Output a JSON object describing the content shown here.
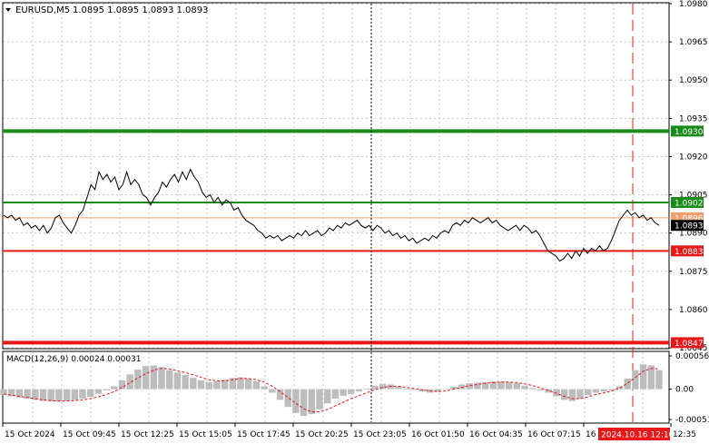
{
  "header": {
    "symbol_label": "EURUSD,M5",
    "ohlc": "1.0895 1.0895 1.0893 1.0893",
    "dropdown_icon": "triangle-down-icon"
  },
  "colors": {
    "grid": "#c8c8c8",
    "price_line": "#000000",
    "support_green": "#1a8c1a",
    "resistance_red": "#e81818",
    "bid_line": "#f0a070",
    "macd_hist": "#bdbdbd",
    "macd_signal": "#e81818",
    "vline_dotted": "#000000",
    "vline_dashed": "#e81818",
    "time_badge": "#e81818"
  },
  "price_axis": {
    "ticks": [
      "1.0980",
      "1.0965",
      "1.0950",
      "1.0935",
      "1.0920",
      "1.0905",
      "1.0890",
      "1.0875",
      "1.0860",
      "1.0845"
    ],
    "min": 1.0845,
    "max": 1.098
  },
  "levels": [
    {
      "value": 1.093,
      "label": "1.0930",
      "color": "#1a8c1a",
      "width": 4,
      "kind": "main"
    },
    {
      "value": 1.0902,
      "label": "1.0902",
      "color": "#1a8c1a",
      "width": 2,
      "kind": "main"
    },
    {
      "value": 1.0896,
      "label": "1.0896",
      "color": "#f0a070",
      "width": 1,
      "kind": "bid"
    },
    {
      "value": 1.0883,
      "label": "1.0883",
      "color": "#e81818",
      "width": 2,
      "kind": "main"
    },
    {
      "value": 1.0847,
      "label": "1.0847",
      "color": "#e81818",
      "width": 4,
      "kind": "main"
    }
  ],
  "current_price": {
    "value": 1.0893,
    "label": "1.0893"
  },
  "macd": {
    "title": "MACD(12,26,9) 0.00024 0.00031",
    "ticks": [
      "0.00056",
      "0.00",
      "-0.00051"
    ],
    "min": -0.00051,
    "max": 0.00056,
    "hist": [
      -0.0001,
      -0.00012,
      -0.00014,
      -0.00016,
      -0.00018,
      -0.0002,
      -0.00021,
      -0.00021,
      -0.0002,
      -0.00018,
      -0.00016,
      -0.00013,
      -8e-05,
      -2e-05,
      5e-05,
      0.00015,
      0.00025,
      0.00033,
      0.00039,
      0.0004,
      0.00037,
      0.00032,
      0.00028,
      0.00024,
      0.00019,
      0.00015,
      0.00012,
      0.00013,
      0.00016,
      0.00019,
      0.0002,
      0.00018,
      0.00013,
      5e-05,
      -6e-05,
      -0.00018,
      -0.0003,
      -0.0004,
      -0.00045,
      -0.00042,
      -0.00034,
      -0.00024,
      -0.00016,
      -0.00011,
      -8e-05,
      -4e-05,
      1e-05,
      6e-05,
      9e-05,
      8e-05,
      4e-05,
      1e-05,
      -1e-05,
      -4e-05,
      -6e-05,
      -4e-05,
      0.0,
      4e-05,
      8e-05,
      0.0001,
      0.00011,
      0.00012,
      0.00013,
      0.00013,
      0.00012,
      0.0001,
      6e-05,
      2e-05,
      -2e-05,
      -6e-05,
      -0.00012,
      -0.00018,
      -0.0002,
      -0.00016,
      -0.0001,
      -6e-05,
      -4e-05,
      -2e-05,
      5e-05,
      0.00018,
      0.00032,
      0.00042,
      0.0004,
      0.00032
    ],
    "signal": [
      -8e-05,
      -0.0001,
      -0.00012,
      -0.00014,
      -0.00016,
      -0.00018,
      -0.00019,
      -0.0002,
      -0.0002,
      -0.00019,
      -0.00018,
      -0.00016,
      -0.00013,
      -9e-05,
      -4e-05,
      3e-05,
      0.00011,
      0.00019,
      0.00026,
      0.00032,
      0.00035,
      0.00034,
      0.00031,
      0.00028,
      0.00024,
      0.0002,
      0.00016,
      0.00014,
      0.00014,
      0.00016,
      0.00018,
      0.00018,
      0.00016,
      0.00012,
      5e-05,
      -4e-05,
      -0.00014,
      -0.00024,
      -0.00033,
      -0.00038,
      -0.00038,
      -0.00034,
      -0.00028,
      -0.00022,
      -0.00016,
      -0.00011,
      -6e-05,
      -1e-05,
      3e-05,
      5e-05,
      5e-05,
      3e-05,
      1e-05,
      -1e-05,
      -3e-05,
      -4e-05,
      -3e-05,
      0.0,
      3e-05,
      6e-05,
      8e-05,
      0.0001,
      0.00011,
      0.00012,
      0.00012,
      0.00011,
      9e-05,
      6e-05,
      2e-05,
      -2e-05,
      -7e-05,
      -0.00012,
      -0.00016,
      -0.00016,
      -0.00013,
      -9e-05,
      -6e-05,
      -3e-05,
      2e-05,
      0.0001,
      0.0002,
      0.0003,
      0.00035,
      0.00034
    ]
  },
  "time_axis": {
    "labels": [
      "15 Oct 2024",
      "15 Oct 09:45",
      "15 Oct 12:25",
      "15 Oct 15:05",
      "15 Oct 17:45",
      "15 Oct 20:25",
      "15 Oct 23:05",
      "16 Oct 01:50",
      "16 Oct 04:35",
      "16 Oct 07:15",
      "16",
      "12:35"
    ],
    "badge": "2024.10.16 12:10"
  },
  "chart_data": {
    "type": "line",
    "symbol": "EURUSD",
    "timeframe": "M5",
    "ylim": [
      1.0845,
      1.098
    ],
    "series": [
      {
        "values": [
          1.0897,
          1.0896,
          1.0897,
          1.0895,
          1.0896,
          1.0893,
          1.0894,
          1.0892,
          1.0893,
          1.0891,
          1.0893,
          1.089,
          1.0892,
          1.0896,
          1.0897,
          1.0894,
          1.0892,
          1.089,
          1.0893,
          1.0897,
          1.0899,
          1.0904,
          1.0909,
          1.0907,
          1.0914,
          1.0911,
          1.0913,
          1.091,
          1.0912,
          1.0907,
          1.0909,
          1.0914,
          1.0909,
          1.0911,
          1.0909,
          1.0905,
          1.0904,
          1.0901,
          1.0904,
          1.0906,
          1.091,
          1.0908,
          1.0911,
          1.0913,
          1.091,
          1.0914,
          1.0911,
          1.0915,
          1.0912,
          1.091,
          1.0906,
          1.0904,
          1.0905,
          1.0902,
          1.0904,
          1.0901,
          1.0903,
          1.0902,
          1.0899,
          1.09,
          1.0897,
          1.0895,
          1.0894,
          1.0893,
          1.0891,
          1.089,
          1.0888,
          1.0889,
          1.0888,
          1.0889,
          1.0887,
          1.0888,
          1.0889,
          1.0888,
          1.089,
          1.0889,
          1.0891,
          1.0889,
          1.089,
          1.0891,
          1.0889,
          1.089,
          1.0892,
          1.0891,
          1.0893,
          1.0892,
          1.0894,
          1.0893,
          1.0894,
          1.0895,
          1.0893,
          1.0892,
          1.0893,
          1.0891,
          1.0893,
          1.0892,
          1.089,
          1.0891,
          1.0889,
          1.089,
          1.0888,
          1.0889,
          1.0887,
          1.0888,
          1.0886,
          1.0887,
          1.0888,
          1.0887,
          1.0889,
          1.0888,
          1.089,
          1.0891,
          1.089,
          1.0893,
          1.0894,
          1.0893,
          1.0895,
          1.0894,
          1.0896,
          1.0895,
          1.0894,
          1.0895,
          1.0896,
          1.0894,
          1.0895,
          1.0893,
          1.0892,
          1.0891,
          1.0892,
          1.0893,
          1.0891,
          1.0893,
          1.0892,
          1.089,
          1.0891,
          1.0889,
          1.0886,
          1.0883,
          1.0882,
          1.0881,
          1.0879,
          1.088,
          1.0882,
          1.088,
          1.0883,
          1.0881,
          1.0884,
          1.0882,
          1.0884,
          1.0883,
          1.0885,
          1.0883,
          1.0884,
          1.0887,
          1.0891,
          1.0895,
          1.0897,
          1.0899,
          1.0897,
          1.0898,
          1.0896,
          1.0897,
          1.0895,
          1.0896,
          1.0894,
          1.0893
        ]
      }
    ]
  }
}
